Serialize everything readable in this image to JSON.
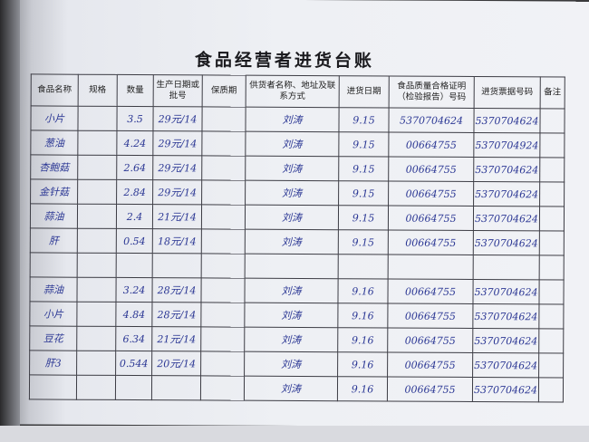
{
  "title": "食品经营者进货台账",
  "headers": [
    "食品名称",
    "规格",
    "数量",
    "生产日期或批号",
    "保质期",
    "供货者名称、地址及联系方式",
    "进货日期",
    "食品质量合格证明（检验报告）号码",
    "进货票据号码",
    "备注"
  ],
  "rows": [
    {
      "name": "小片",
      "spec": "",
      "qty": "3.5",
      "prod": "29元/14",
      "shelf": "",
      "supplier": "刘涛",
      "date": "9.15",
      "cert": "5370704624",
      "invoice": "5370704624",
      "note": ""
    },
    {
      "name": "葱油",
      "spec": "",
      "qty": "4.24",
      "prod": "29元/14",
      "shelf": "",
      "supplier": "刘涛",
      "date": "9.15",
      "cert": "00664755",
      "invoice": "53707049​24",
      "note": ""
    },
    {
      "name": "杏鲍菇",
      "spec": "",
      "qty": "2.64",
      "prod": "29元/14",
      "shelf": "",
      "supplier": "刘涛",
      "date": "9.15",
      "cert": "00664755",
      "invoice": "5370704624",
      "note": ""
    },
    {
      "name": "金针菇",
      "spec": "",
      "qty": "2.84",
      "prod": "29元/14",
      "shelf": "",
      "supplier": "刘涛",
      "date": "9.15",
      "cert": "00664755",
      "invoice": "5370704624",
      "note": ""
    },
    {
      "name": "蒜油",
      "spec": "",
      "qty": "2.4",
      "prod": "21元/14",
      "shelf": "",
      "supplier": "刘涛",
      "date": "9.15",
      "cert": "00664755",
      "invoice": "5370704624",
      "note": ""
    },
    {
      "name": "肝",
      "spec": "",
      "qty": "0.54",
      "prod": "18元/14",
      "shelf": "",
      "supplier": "刘涛",
      "date": "9.15",
      "cert": "00664755",
      "invoice": "5370704624",
      "note": ""
    },
    {
      "name": "",
      "spec": "",
      "qty": "",
      "prod": "",
      "shelf": "",
      "supplier": "",
      "date": "",
      "cert": "",
      "invoice": "",
      "note": ""
    },
    {
      "name": "蒜油",
      "spec": "",
      "qty": "3.24",
      "prod": "28元/14",
      "shelf": "",
      "supplier": "刘涛",
      "date": "9.16",
      "cert": "00664755",
      "invoice": "5370704624",
      "note": ""
    },
    {
      "name": "小片",
      "spec": "",
      "qty": "4.84",
      "prod": "28元/14",
      "shelf": "",
      "supplier": "刘涛",
      "date": "9.16",
      "cert": "00664755",
      "invoice": "5370704624",
      "note": ""
    },
    {
      "name": "豆花",
      "spec": "",
      "qty": "6.34",
      "prod": "21元/14",
      "shelf": "",
      "supplier": "刘涛",
      "date": "9.16",
      "cert": "00664755",
      "invoice": "5370704624",
      "note": ""
    },
    {
      "name": "肝3",
      "spec": "",
      "qty": "0.544",
      "prod": "20元/14",
      "shelf": "",
      "supplier": "刘涛",
      "date": "9.16",
      "cert": "00664755",
      "invoice": "5370704624",
      "note": ""
    },
    {
      "name": "",
      "spec": "",
      "qty": "",
      "prod": "",
      "shelf": "",
      "supplier": "刘涛",
      "date": "9.16",
      "cert": "00664755",
      "invoice": "5370704624",
      "note": ""
    }
  ]
}
